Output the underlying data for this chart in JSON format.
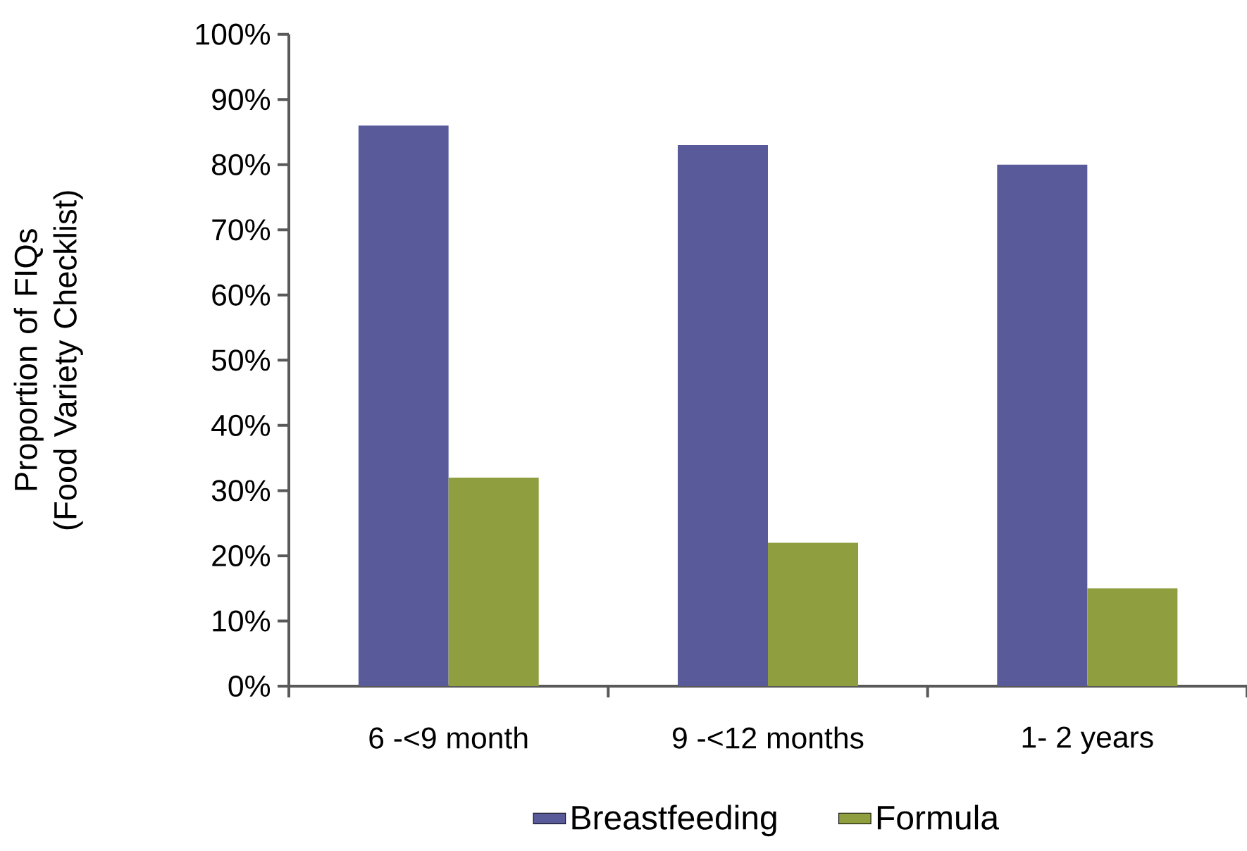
{
  "chart_data": {
    "type": "bar",
    "ylabel": "Proportion of FIQs (Food Variety Checklist)",
    "categories": [
      "6 -<9 month",
      "9 -<12 months",
      "1- 2 years"
    ],
    "series": [
      {
        "name": "Breastfeeding",
        "color": "#585a9a",
        "values": [
          86,
          83,
          80
        ]
      },
      {
        "name": "Formula",
        "color": "#8f9e3e",
        "values": [
          32,
          22,
          15
        ]
      }
    ],
    "ylim": [
      0,
      100
    ],
    "yticks": [
      {
        "value": 0,
        "label": "0%"
      },
      {
        "value": 10,
        "label": "10%"
      },
      {
        "value": 20,
        "label": "20%"
      },
      {
        "value": 30,
        "label": "30%"
      },
      {
        "value": 40,
        "label": "40%"
      },
      {
        "value": 50,
        "label": "50%"
      },
      {
        "value": 60,
        "label": "60%"
      },
      {
        "value": 70,
        "label": "70%"
      },
      {
        "value": 80,
        "label": "80%"
      },
      {
        "value": 90,
        "label": "90%"
      },
      {
        "value": 100,
        "label": "100%"
      }
    ],
    "legend": "bottom"
  }
}
